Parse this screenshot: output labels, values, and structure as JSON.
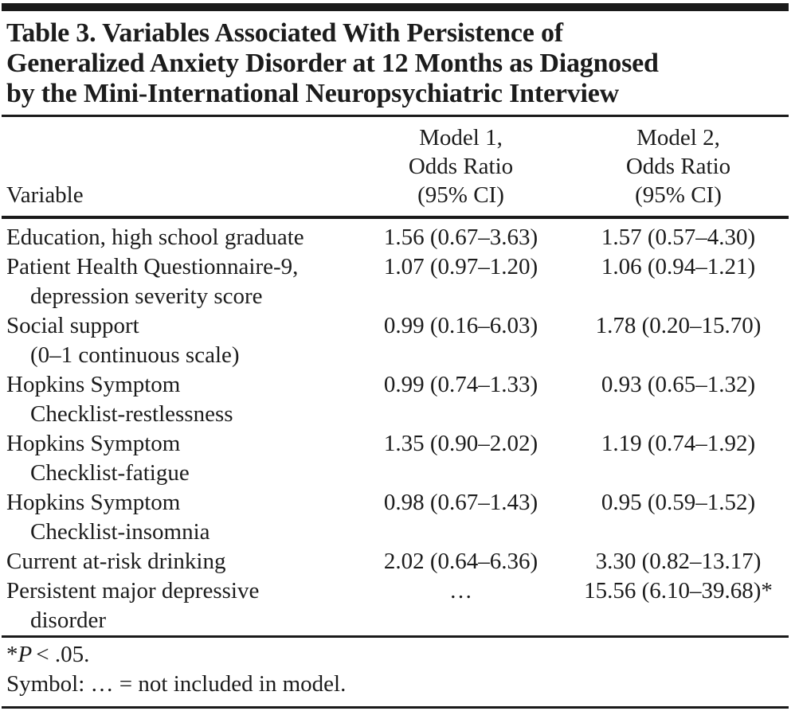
{
  "table": {
    "title_lines": [
      "Table 3. Variables Associated With Persistence of",
      "Generalized Anxiety Disorder at 12 Months as Diagnosed",
      "by the Mini-International Neuropsychiatric Interview"
    ],
    "header": {
      "variable_label": "Variable",
      "model1_lines": [
        "Model 1,",
        "Odds Ratio",
        "(95% CI)"
      ],
      "model2_lines": [
        "Model 2,",
        "Odds Ratio",
        "(95% CI)"
      ]
    },
    "rows": [
      {
        "variable_lines": [
          "Education, high school graduate"
        ],
        "model1": "1.56 (0.67–3.63)",
        "model2": "1.57 (0.57–4.30)"
      },
      {
        "variable_lines": [
          "Patient Health Questionnaire-9,",
          "depression severity score"
        ],
        "model1": "1.07 (0.97–1.20)",
        "model2": "1.06 (0.94–1.21)"
      },
      {
        "variable_lines": [
          "Social support",
          "(0–1 continuous scale)"
        ],
        "model1": "0.99 (0.16–6.03)",
        "model2": "1.78 (0.20–15.70)"
      },
      {
        "variable_lines": [
          "Hopkins Symptom",
          "Checklist-restlessness"
        ],
        "model1": "0.99 (0.74–1.33)",
        "model2": "0.93 (0.65–1.32)"
      },
      {
        "variable_lines": [
          "Hopkins Symptom",
          "Checklist-fatigue"
        ],
        "model1": "1.35 (0.90–2.02)",
        "model2": "1.19 (0.74–1.92)"
      },
      {
        "variable_lines": [
          "Hopkins Symptom",
          "Checklist-insomnia"
        ],
        "model1": "0.98 (0.67–1.43)",
        "model2": "0.95 (0.59–1.52)"
      },
      {
        "variable_lines": [
          "Current at-risk drinking"
        ],
        "model1": "2.02 (0.64–6.36)",
        "model2": "3.30 (0.82–13.17)"
      },
      {
        "variable_lines": [
          "Persistent major depressive",
          "disorder"
        ],
        "model1": "…",
        "model2": "15.56 (6.10–39.68)*"
      }
    ],
    "footnotes": {
      "significance_marker": "*",
      "significance_p": "P",
      "significance_comparison": "< .05.",
      "symbol_note": "Symbol: … = not included in model."
    },
    "colors": {
      "text": "#1c1c1c",
      "rule": "#1a1a1a",
      "background": "#ffffff"
    }
  }
}
